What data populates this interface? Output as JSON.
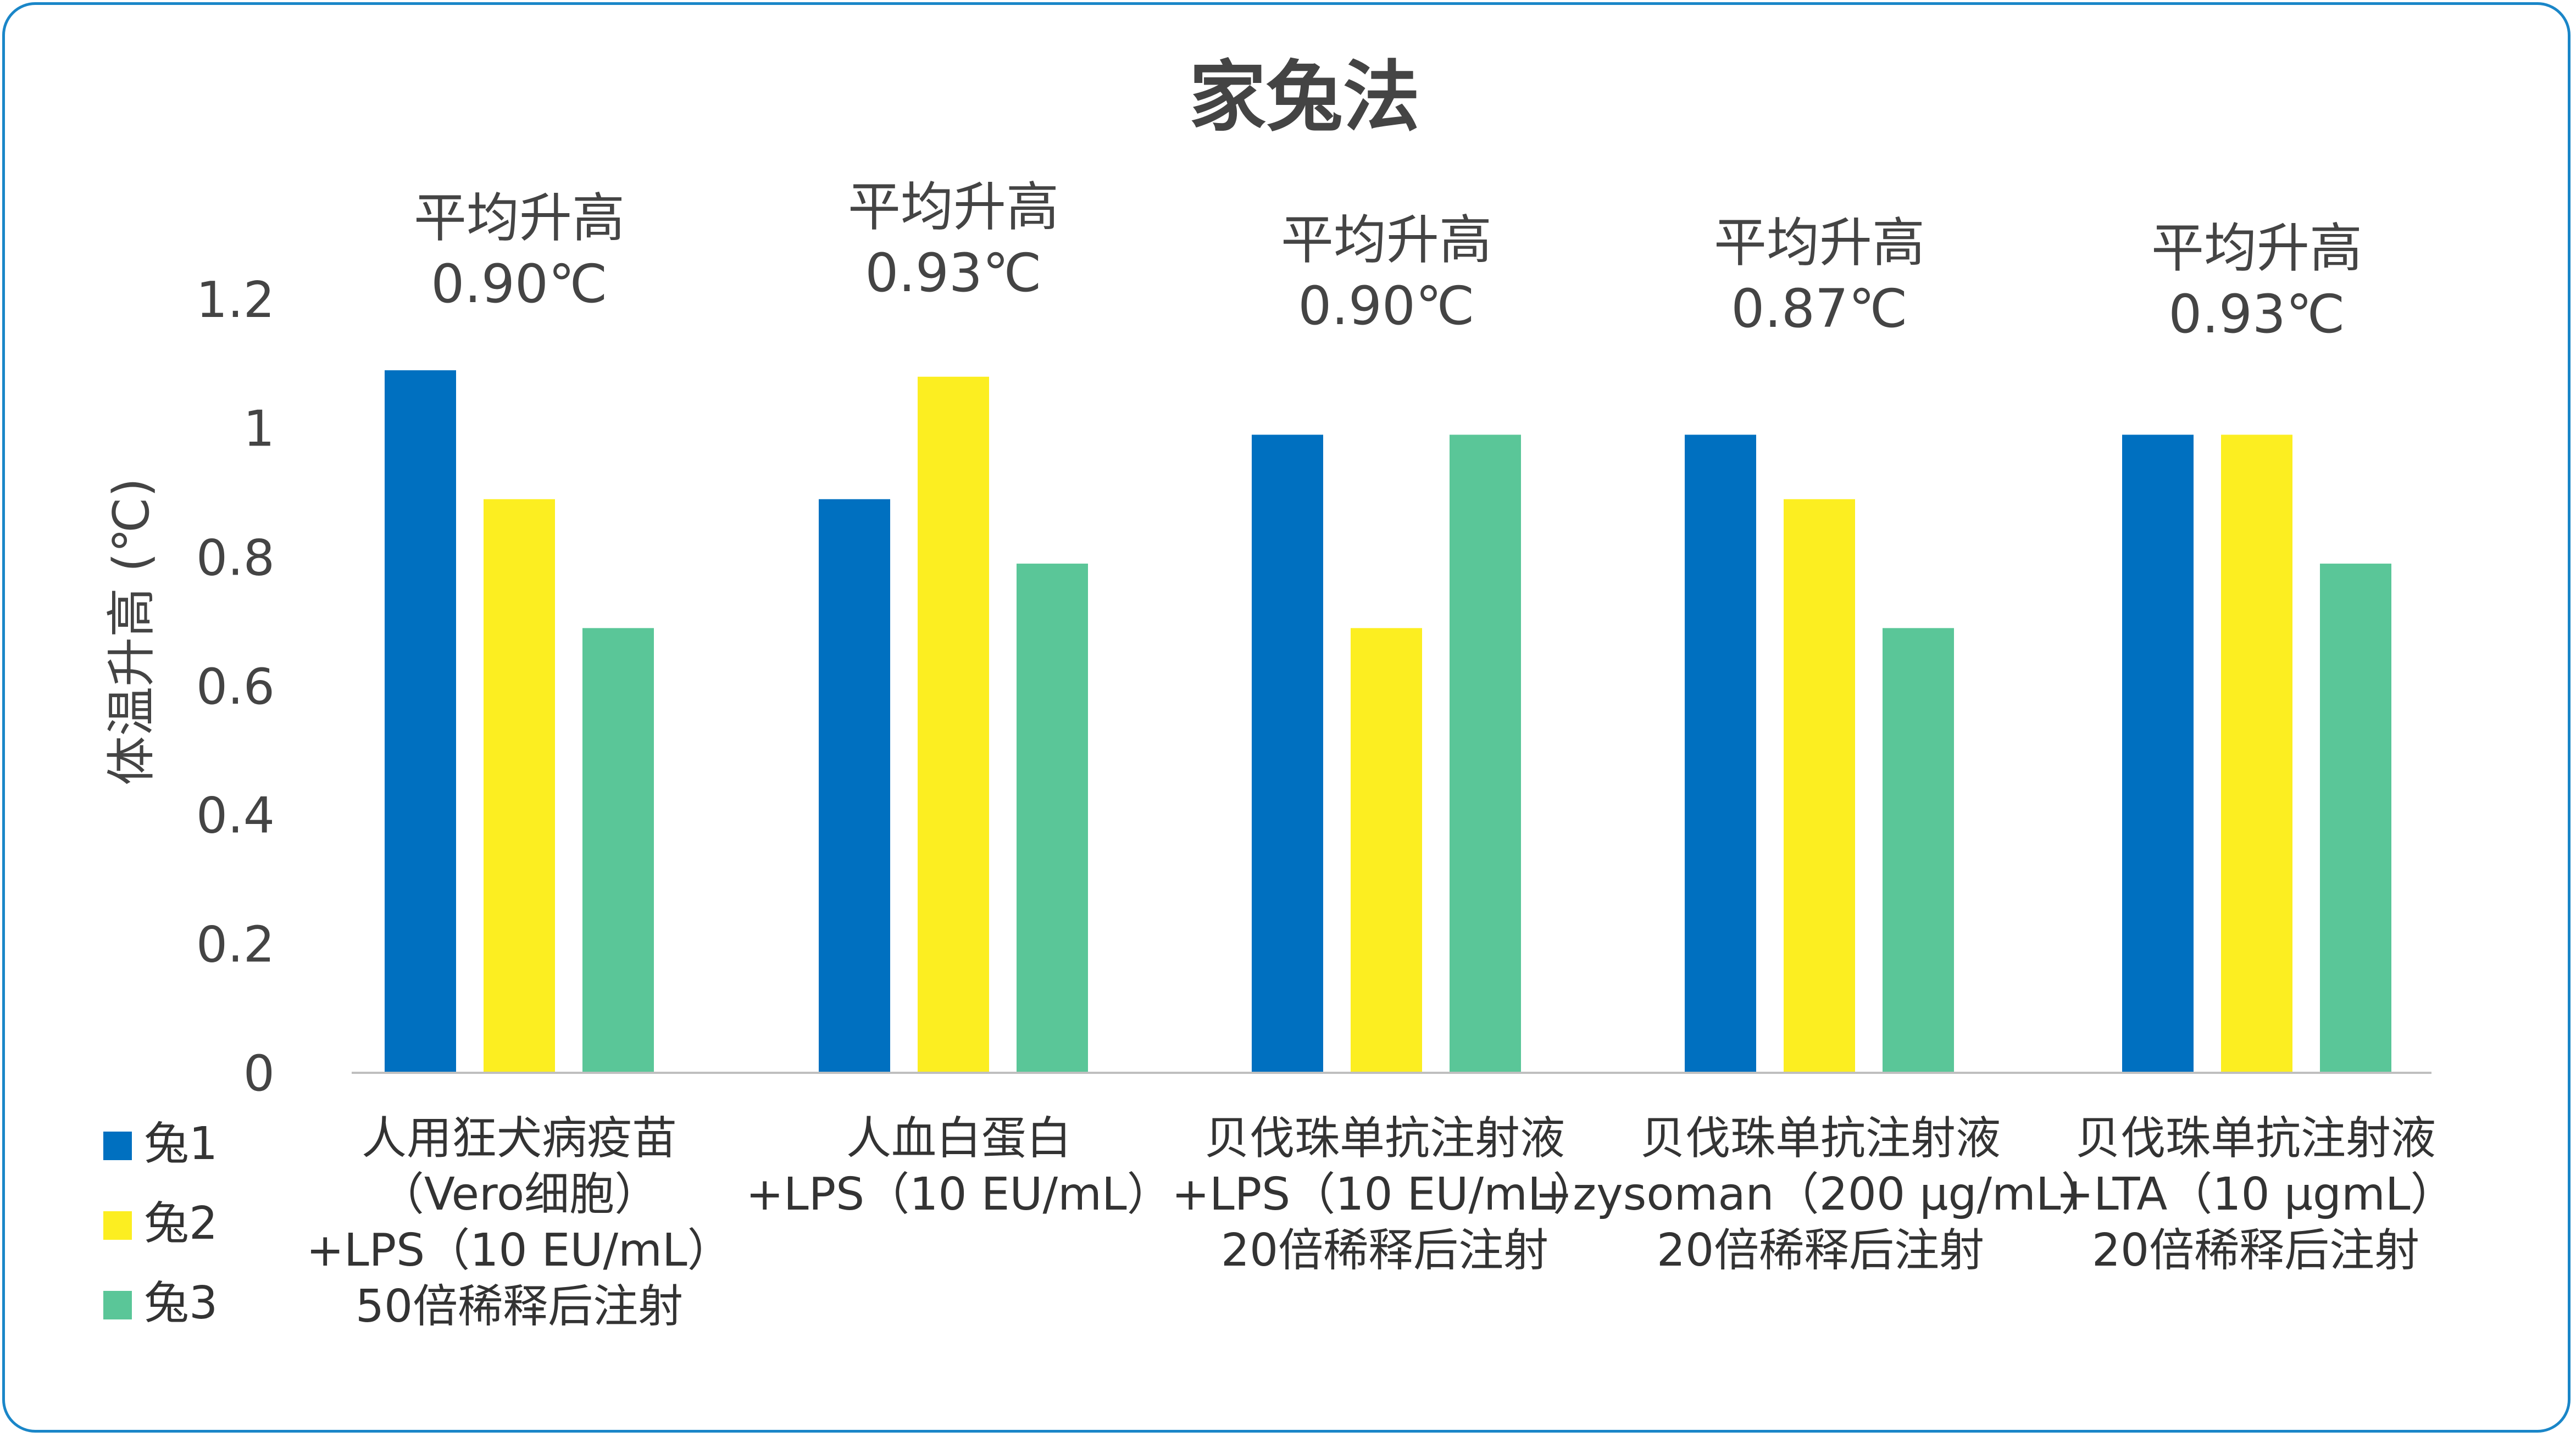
{
  "chart_data": {
    "type": "bar",
    "title": "家兔法",
    "ylabel": "体温升高 (℃)",
    "ylim": [
      0,
      1.2
    ],
    "yticks": [
      "0",
      "0.2",
      "0.4",
      "0.6",
      "0.8",
      "1",
      "1.2"
    ],
    "categories": [
      [
        "人用狂犬病疫苗",
        "（Vero细胞）",
        "+LPS（10 EU/mL）",
        "50倍稀释后注射"
      ],
      [
        "人血白蛋白",
        "+LPS（10 EU/mL）"
      ],
      [
        "贝伐珠单抗注射液",
        "+LPS（10 EU/mL）",
        "20倍稀释后注射"
      ],
      [
        "贝伐珠单抗注射液",
        "+zysoman（200 μg/mL）",
        "20倍稀释后注射"
      ],
      [
        "贝伐珠单抗注射液",
        "+LTA（10 μgmL）",
        "20倍稀释后注射"
      ]
    ],
    "annotations": [
      [
        "平均升高",
        "0.90℃"
      ],
      [
        "平均升高",
        "0.93℃"
      ],
      [
        "平均升高",
        "0.90℃"
      ],
      [
        "平均升高",
        "0.87℃"
      ],
      [
        "平均升高",
        "0.93℃"
      ]
    ],
    "series": [
      {
        "name": "兔1",
        "color": "#0070c0",
        "values": [
          1.09,
          0.89,
          0.99,
          0.99,
          0.99
        ]
      },
      {
        "name": "兔2",
        "color": "#fcee21",
        "values": [
          0.89,
          1.08,
          0.69,
          0.89,
          0.99
        ]
      },
      {
        "name": "兔3",
        "color": "#5ac698",
        "values": [
          0.69,
          0.79,
          0.99,
          0.69,
          0.79
        ]
      }
    ],
    "legend_position": "bottom-left",
    "grid": false
  }
}
